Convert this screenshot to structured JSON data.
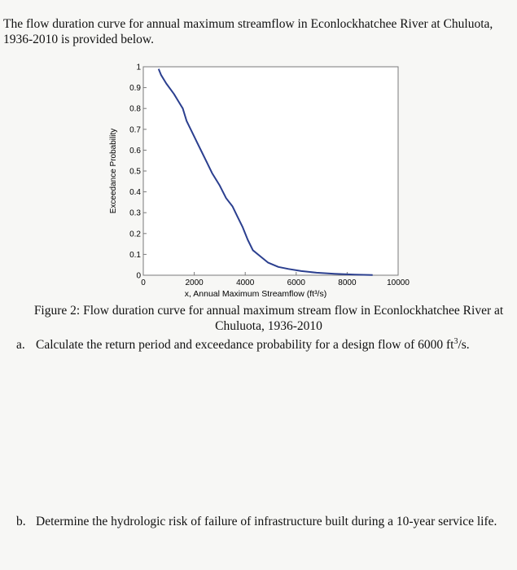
{
  "intro": {
    "line1": "The flow duration curve for annual maximum streamflow in Econlockhatchee River at Chuluota,",
    "line2": "1936-2010 is provided below."
  },
  "figure": {
    "caption_line1": "Figure 2: Flow duration curve for annual maximum stream flow in Econlockhatchee River at",
    "caption_line2": "Chuluota, 1936-2010"
  },
  "chart_data": {
    "type": "line",
    "title": "",
    "xlabel": "x, Annual Maximum Streamflow (ft³/s)",
    "ylabel": "Exceedance Probability",
    "xlim": [
      0,
      10000
    ],
    "ylim": [
      0,
      1
    ],
    "xticks": [
      "0",
      "2000",
      "4000",
      "6000",
      "8000",
      "10000"
    ],
    "yticks": [
      "0",
      "0.1",
      "0.2",
      "0.3",
      "0.4",
      "0.5",
      "0.6",
      "0.7",
      "0.8",
      "0.9",
      "1"
    ],
    "grid": false,
    "series": [
      {
        "color": "#2b3f8f",
        "x": [
          600,
          700,
          900,
          1200,
          1400,
          1550,
          1700,
          1900,
          2100,
          2300,
          2500,
          2700,
          3000,
          3250,
          3500,
          3700,
          3900,
          4100,
          4300,
          4600,
          4900,
          5300,
          5700,
          6200,
          6800,
          7500,
          8300,
          9000
        ],
        "y": [
          0.99,
          0.96,
          0.92,
          0.87,
          0.83,
          0.8,
          0.74,
          0.69,
          0.64,
          0.59,
          0.54,
          0.49,
          0.43,
          0.37,
          0.33,
          0.28,
          0.23,
          0.17,
          0.12,
          0.09,
          0.06,
          0.04,
          0.03,
          0.02,
          0.012,
          0.007,
          0.003,
          0.001
        ]
      }
    ]
  },
  "questions": {
    "a": {
      "label": "a.",
      "text": "Calculate the return period and exceedance probability for a design flow of 6000 ft",
      "sup": "3",
      "tail": "/s."
    },
    "b": {
      "label": "b.",
      "text": "Determine the hydrologic risk of failure of infrastructure built during a 10-year service life."
    }
  }
}
